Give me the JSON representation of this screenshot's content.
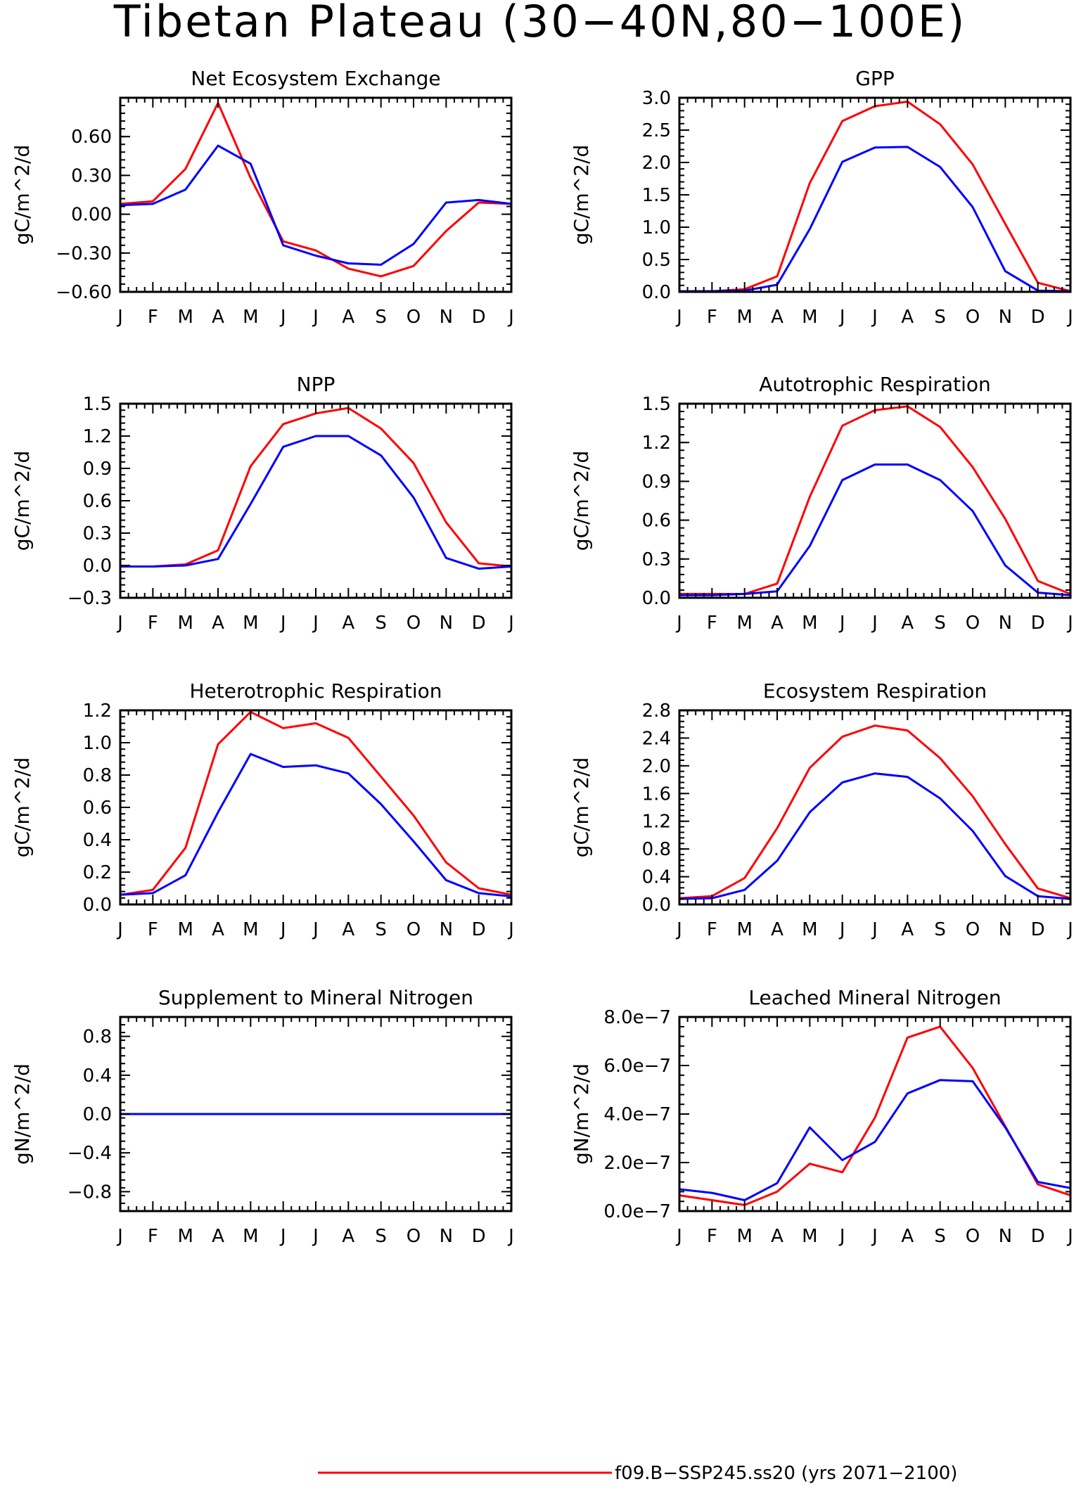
{
  "figure": {
    "title": "Tibetan Plateau (30−40N,80−100E)",
    "legend": [
      {
        "label": "f09.B−SSP245.ss20 (yrs 2071−2100)",
        "color": "#ff0000"
      }
    ]
  },
  "chart_data": [
    {
      "type": "line",
      "title": "Net Ecosystem Exchange",
      "ylabel": "gC/m^2/d",
      "x": [
        "J",
        "F",
        "M",
        "A",
        "M",
        "J",
        "J",
        "A",
        "S",
        "O",
        "N",
        "D",
        "J"
      ],
      "ylim": [
        -0.6,
        0.9
      ],
      "yticks": [
        -0.6,
        -0.3,
        0.0,
        0.3,
        0.6
      ],
      "ytick_labels": [
        "−0.60",
        "−0.30",
        "0.00",
        "0.30",
        "0.60"
      ],
      "series": [
        {
          "color": "#ff0000",
          "values": [
            0.08,
            0.1,
            0.35,
            0.86,
            0.28,
            -0.21,
            -0.28,
            -0.42,
            -0.48,
            -0.4,
            -0.13,
            0.09,
            0.08
          ]
        },
        {
          "color": "#0000ff",
          "values": [
            0.07,
            0.08,
            0.19,
            0.53,
            0.39,
            -0.24,
            -0.32,
            -0.38,
            -0.39,
            -0.23,
            0.09,
            0.11,
            0.08
          ]
        }
      ]
    },
    {
      "type": "line",
      "title": "GPP",
      "ylabel": "gC/m^2/d",
      "x": [
        "J",
        "F",
        "M",
        "A",
        "M",
        "J",
        "J",
        "A",
        "S",
        "O",
        "N",
        "D",
        "J"
      ],
      "ylim": [
        0.0,
        3.0
      ],
      "yticks": [
        0.0,
        0.5,
        1.0,
        1.5,
        2.0,
        2.5,
        3.0
      ],
      "ytick_labels": [
        "0.0",
        "0.5",
        "1.0",
        "1.5",
        "2.0",
        "2.5",
        "3.0"
      ],
      "series": [
        {
          "color": "#ff0000",
          "values": [
            0.01,
            0.01,
            0.04,
            0.24,
            1.68,
            2.64,
            2.87,
            2.94,
            2.59,
            1.97,
            1.05,
            0.14,
            0.01
          ]
        },
        {
          "color": "#0000ff",
          "values": [
            0.01,
            0.01,
            0.02,
            0.11,
            0.97,
            2.01,
            2.23,
            2.24,
            1.93,
            1.31,
            0.32,
            0.02,
            0.01
          ]
        }
      ]
    },
    {
      "type": "line",
      "title": "NPP",
      "ylabel": "gC/m^2/d",
      "x": [
        "J",
        "F",
        "M",
        "A",
        "M",
        "J",
        "J",
        "A",
        "S",
        "O",
        "N",
        "D",
        "J"
      ],
      "ylim": [
        -0.3,
        1.5
      ],
      "yticks": [
        -0.3,
        0.0,
        0.3,
        0.6,
        0.9,
        1.2,
        1.5
      ],
      "ytick_labels": [
        "−0.3",
        "0.0",
        "0.3",
        "0.6",
        "0.9",
        "1.2",
        "1.5"
      ],
      "series": [
        {
          "color": "#ff0000",
          "values": [
            -0.01,
            -0.01,
            0.01,
            0.14,
            0.92,
            1.31,
            1.41,
            1.46,
            1.27,
            0.95,
            0.4,
            0.02,
            -0.01
          ]
        },
        {
          "color": "#0000ff",
          "values": [
            -0.01,
            -0.01,
            0.0,
            0.06,
            0.57,
            1.1,
            1.2,
            1.2,
            1.02,
            0.63,
            0.07,
            -0.03,
            -0.01
          ]
        }
      ]
    },
    {
      "type": "line",
      "title": "Autotrophic Respiration",
      "ylabel": "gC/m^2/d",
      "x": [
        "J",
        "F",
        "M",
        "A",
        "M",
        "J",
        "J",
        "A",
        "S",
        "O",
        "N",
        "D",
        "J"
      ],
      "ylim": [
        0.0,
        1.5
      ],
      "yticks": [
        0.0,
        0.3,
        0.6,
        0.9,
        1.2,
        1.5
      ],
      "ytick_labels": [
        "0.0",
        "0.3",
        "0.6",
        "0.9",
        "1.2",
        "1.5"
      ],
      "series": [
        {
          "color": "#ff0000",
          "values": [
            0.03,
            0.03,
            0.03,
            0.11,
            0.78,
            1.33,
            1.45,
            1.48,
            1.32,
            1.01,
            0.61,
            0.13,
            0.03
          ]
        },
        {
          "color": "#0000ff",
          "values": [
            0.02,
            0.02,
            0.03,
            0.05,
            0.4,
            0.91,
            1.03,
            1.03,
            0.91,
            0.67,
            0.25,
            0.04,
            0.02
          ]
        }
      ]
    },
    {
      "type": "line",
      "title": "Heterotrophic Respiration",
      "ylabel": "gC/m^2/d",
      "x": [
        "J",
        "F",
        "M",
        "A",
        "M",
        "J",
        "J",
        "A",
        "S",
        "O",
        "N",
        "D",
        "J"
      ],
      "ylim": [
        0.0,
        1.2
      ],
      "yticks": [
        0.0,
        0.2,
        0.4,
        0.6,
        0.8,
        1.0,
        1.2
      ],
      "ytick_labels": [
        "0.0",
        "0.2",
        "0.4",
        "0.6",
        "0.8",
        "1.0",
        "1.2"
      ],
      "series": [
        {
          "color": "#ff0000",
          "values": [
            0.06,
            0.09,
            0.35,
            0.99,
            1.19,
            1.09,
            1.12,
            1.03,
            0.79,
            0.55,
            0.26,
            0.1,
            0.06
          ]
        },
        {
          "color": "#0000ff",
          "values": [
            0.06,
            0.07,
            0.18,
            0.57,
            0.93,
            0.85,
            0.86,
            0.81,
            0.62,
            0.39,
            0.15,
            0.07,
            0.05
          ]
        }
      ]
    },
    {
      "type": "line",
      "title": "Ecosystem Respiration",
      "ylabel": "gC/m^2/d",
      "x": [
        "J",
        "F",
        "M",
        "A",
        "M",
        "J",
        "J",
        "A",
        "S",
        "O",
        "N",
        "D",
        "J"
      ],
      "ylim": [
        0.0,
        2.8
      ],
      "yticks": [
        0.0,
        0.4,
        0.8,
        1.2,
        1.6,
        2.0,
        2.4,
        2.8
      ],
      "ytick_labels": [
        "0.0",
        "0.4",
        "0.8",
        "1.2",
        "1.6",
        "2.0",
        "2.4",
        "2.8"
      ],
      "series": [
        {
          "color": "#ff0000",
          "values": [
            0.09,
            0.12,
            0.38,
            1.1,
            1.97,
            2.42,
            2.58,
            2.51,
            2.11,
            1.56,
            0.87,
            0.23,
            0.09
          ]
        },
        {
          "color": "#0000ff",
          "values": [
            0.08,
            0.09,
            0.21,
            0.63,
            1.33,
            1.76,
            1.89,
            1.84,
            1.53,
            1.06,
            0.41,
            0.12,
            0.08
          ]
        }
      ]
    },
    {
      "type": "line",
      "title": "Supplement to Mineral Nitrogen",
      "ylabel": "gN/m^2/d",
      "x": [
        "J",
        "F",
        "M",
        "A",
        "M",
        "J",
        "J",
        "A",
        "S",
        "O",
        "N",
        "D",
        "J"
      ],
      "ylim": [
        -1.0,
        1.0
      ],
      "yticks": [
        -0.8,
        -0.4,
        0.0,
        0.4,
        0.8
      ],
      "ytick_labels": [
        "−0.8",
        "−0.4",
        "0.0",
        "0.4",
        "0.8"
      ],
      "series": [
        {
          "color": "#ff0000",
          "values": [
            0,
            0,
            0,
            0,
            0,
            0,
            0,
            0,
            0,
            0,
            0,
            0,
            0
          ]
        },
        {
          "color": "#0000ff",
          "values": [
            0,
            0,
            0,
            0,
            0,
            0,
            0,
            0,
            0,
            0,
            0,
            0,
            0
          ]
        }
      ]
    },
    {
      "type": "line",
      "title": "Leached Mineral Nitrogen",
      "ylabel": "gN/m^2/d",
      "x": [
        "J",
        "F",
        "M",
        "A",
        "M",
        "J",
        "J",
        "A",
        "S",
        "O",
        "N",
        "D",
        "J"
      ],
      "ylim": [
        0.0,
        8e-07
      ],
      "yticks": [
        0.0,
        2e-07,
        4e-07,
        6e-07,
        8e-07
      ],
      "ytick_labels": [
        "0.0e−7",
        "2.0e−7",
        "4.0e−7",
        "6.0e−7",
        "8.0e−7"
      ],
      "series": [
        {
          "color": "#ff0000",
          "values": [
            6.5e-08,
            4.5e-08,
            2.5e-08,
            8e-08,
            1.95e-07,
            1.6e-07,
            3.85e-07,
            7.15e-07,
            7.6e-07,
            5.9e-07,
            3.5e-07,
            1.1e-07,
            6.5e-08
          ]
        },
        {
          "color": "#0000ff",
          "values": [
            9e-08,
            7.5e-08,
            4.5e-08,
            1.15e-07,
            3.45e-07,
            2.1e-07,
            2.85e-07,
            4.85e-07,
            5.4e-07,
            5.35e-07,
            3.45e-07,
            1.2e-07,
            9.5e-08
          ]
        }
      ]
    }
  ]
}
